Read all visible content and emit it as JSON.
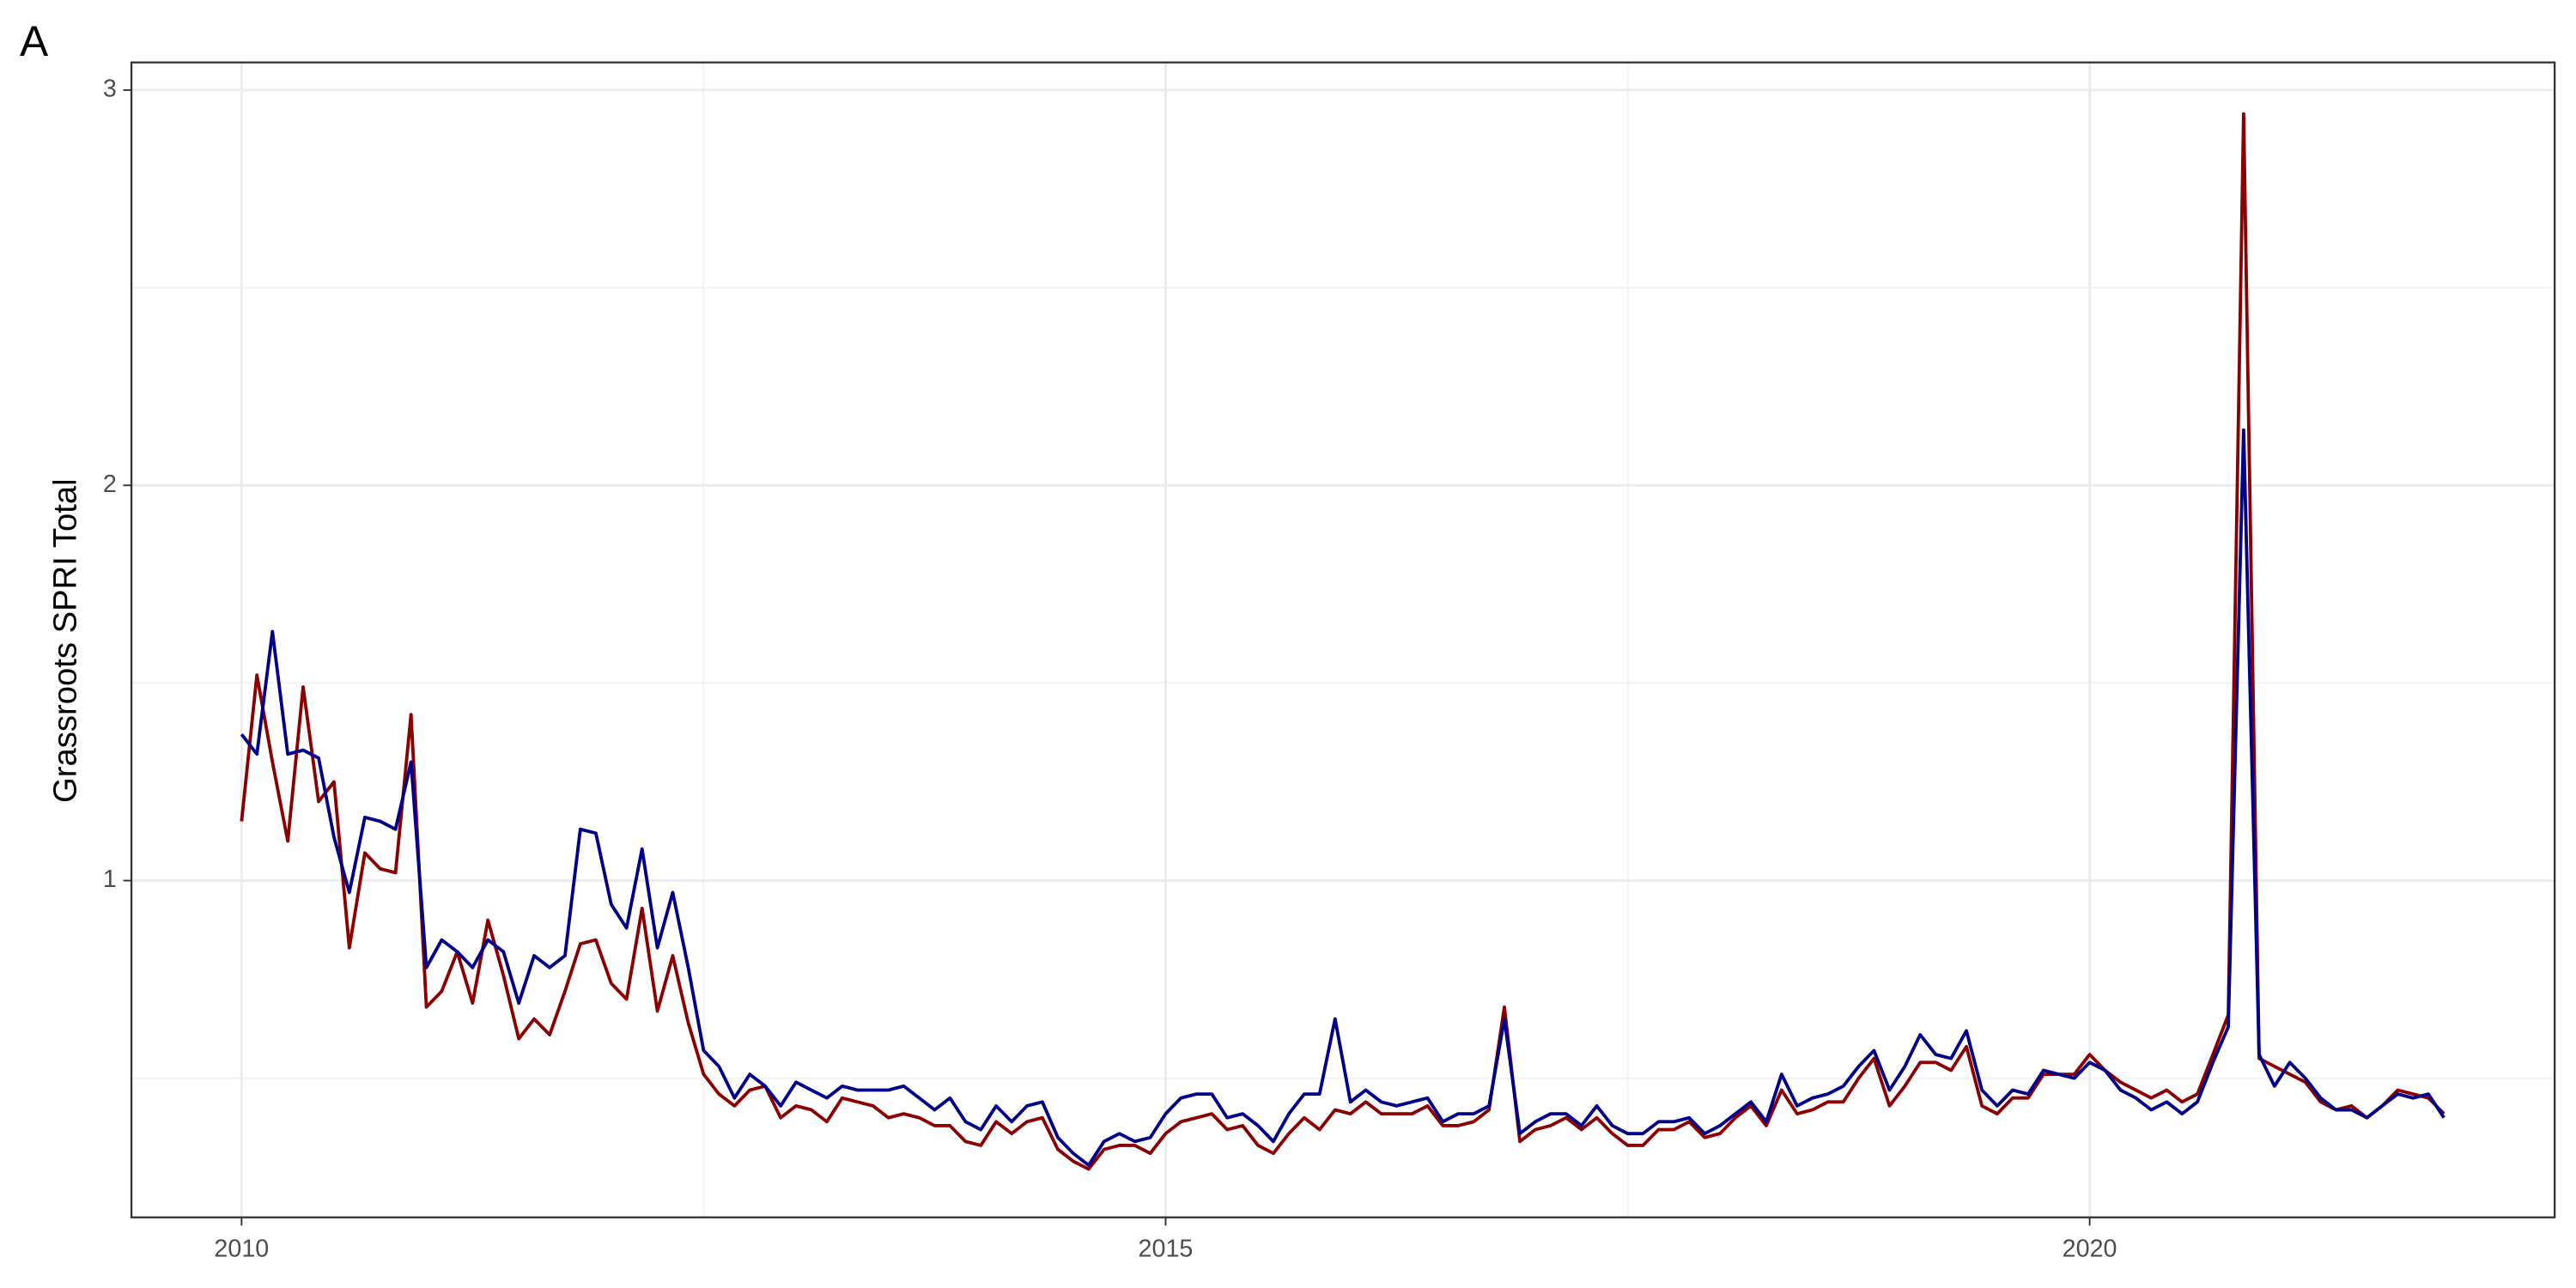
{
  "chart_data": {
    "type": "line",
    "tag": "A",
    "y_label": "Grassroots SPRI Total",
    "xlim": [
      2009.404,
      2022.516
    ],
    "ylim": [
      0.148,
      3.07
    ],
    "xticks": [
      2010,
      2015,
      2020
    ],
    "yticks": [
      1,
      2,
      3
    ],
    "x_minor_ticks": [
      2012.5,
      2017.5
    ],
    "y_minor_ticks": [
      0.5,
      1.5,
      2.5
    ],
    "grid": true,
    "x": [
      2010,
      2010.083,
      2010.167,
      2010.25,
      2010.333,
      2010.417,
      2010.5,
      2010.583,
      2010.667,
      2010.75,
      2010.833,
      2010.917,
      2011,
      2011.083,
      2011.167,
      2011.25,
      2011.333,
      2011.417,
      2011.5,
      2011.583,
      2011.667,
      2011.75,
      2011.833,
      2011.917,
      2012,
      2012.083,
      2012.167,
      2012.25,
      2012.333,
      2012.417,
      2012.5,
      2012.583,
      2012.667,
      2012.75,
      2012.833,
      2012.917,
      2013,
      2013.083,
      2013.167,
      2013.25,
      2013.333,
      2013.417,
      2013.5,
      2013.583,
      2013.667,
      2013.75,
      2013.833,
      2013.917,
      2014,
      2014.083,
      2014.167,
      2014.25,
      2014.333,
      2014.417,
      2014.5,
      2014.583,
      2014.667,
      2014.75,
      2014.833,
      2014.917,
      2015,
      2015.083,
      2015.167,
      2015.25,
      2015.333,
      2015.417,
      2015.5,
      2015.583,
      2015.667,
      2015.75,
      2015.833,
      2015.917,
      2016,
      2016.083,
      2016.167,
      2016.25,
      2016.333,
      2016.417,
      2016.5,
      2016.583,
      2016.667,
      2016.75,
      2016.833,
      2016.917,
      2017,
      2017.083,
      2017.167,
      2017.25,
      2017.333,
      2017.417,
      2017.5,
      2017.583,
      2017.667,
      2017.75,
      2017.833,
      2017.917,
      2018,
      2018.083,
      2018.167,
      2018.25,
      2018.333,
      2018.417,
      2018.5,
      2018.583,
      2018.667,
      2018.75,
      2018.833,
      2018.917,
      2019,
      2019.083,
      2019.167,
      2019.25,
      2019.333,
      2019.417,
      2019.5,
      2019.583,
      2019.667,
      2019.75,
      2019.833,
      2019.917,
      2020,
      2020.083,
      2020.167,
      2020.25,
      2020.333,
      2020.417,
      2020.5,
      2020.583,
      2020.667,
      2020.75,
      2020.833,
      2020.917,
      2021,
      2021.083,
      2021.167,
      2021.25,
      2021.333,
      2021.417,
      2021.5,
      2021.583,
      2021.667,
      2021.75,
      2021.833,
      2021.917
    ],
    "series": [
      {
        "color": "#8b0000",
        "values": [
          1.15,
          1.52,
          1.3,
          1.1,
          1.49,
          1.2,
          1.25,
          0.83,
          1.07,
          1.03,
          1.02,
          1.42,
          0.68,
          0.72,
          0.82,
          0.69,
          0.9,
          0.76,
          0.6,
          0.65,
          0.61,
          0.72,
          0.84,
          0.85,
          0.74,
          0.7,
          0.93,
          0.67,
          0.81,
          0.64,
          0.51,
          0.46,
          0.43,
          0.47,
          0.48,
          0.4,
          0.43,
          0.42,
          0.39,
          0.45,
          0.44,
          0.43,
          0.4,
          0.41,
          0.4,
          0.38,
          0.38,
          0.34,
          0.33,
          0.39,
          0.36,
          0.39,
          0.4,
          0.32,
          0.29,
          0.27,
          0.32,
          0.33,
          0.33,
          0.31,
          0.36,
          0.39,
          0.4,
          0.41,
          0.37,
          0.38,
          0.33,
          0.31,
          0.36,
          0.4,
          0.37,
          0.42,
          0.41,
          0.44,
          0.41,
          0.41,
          0.41,
          0.43,
          0.38,
          0.38,
          0.39,
          0.42,
          0.68,
          0.34,
          0.37,
          0.38,
          0.4,
          0.37,
          0.4,
          0.36,
          0.33,
          0.33,
          0.37,
          0.37,
          0.39,
          0.35,
          0.36,
          0.4,
          0.43,
          0.38,
          0.47,
          0.41,
          0.42,
          0.44,
          0.44,
          0.5,
          0.55,
          0.43,
          0.48,
          0.54,
          0.54,
          0.52,
          0.58,
          0.43,
          0.41,
          0.45,
          0.45,
          0.51,
          0.51,
          0.51,
          0.56,
          0.52,
          0.49,
          0.47,
          0.45,
          0.47,
          0.44,
          0.46,
          0.56,
          0.66,
          2.94,
          0.55,
          0.53,
          0.51,
          0.49,
          0.44,
          0.42,
          0.43,
          0.4,
          0.43,
          0.47,
          0.46,
          0.45,
          0.41
        ]
      },
      {
        "color": "#00008b",
        "values": [
          1.37,
          1.32,
          1.63,
          1.32,
          1.33,
          1.31,
          1.11,
          0.97,
          1.16,
          1.15,
          1.13,
          1.3,
          0.78,
          0.85,
          0.82,
          0.78,
          0.85,
          0.82,
          0.69,
          0.81,
          0.78,
          0.81,
          1.13,
          1.12,
          0.94,
          0.88,
          1.08,
          0.83,
          0.97,
          0.78,
          0.57,
          0.53,
          0.45,
          0.51,
          0.48,
          0.43,
          0.49,
          0.47,
          0.45,
          0.48,
          0.47,
          0.47,
          0.47,
          0.48,
          0.45,
          0.42,
          0.45,
          0.39,
          0.37,
          0.43,
          0.39,
          0.43,
          0.44,
          0.35,
          0.31,
          0.28,
          0.34,
          0.36,
          0.34,
          0.35,
          0.41,
          0.45,
          0.46,
          0.46,
          0.4,
          0.41,
          0.38,
          0.34,
          0.41,
          0.46,
          0.46,
          0.65,
          0.44,
          0.47,
          0.44,
          0.43,
          0.44,
          0.45,
          0.39,
          0.41,
          0.41,
          0.43,
          0.65,
          0.36,
          0.39,
          0.41,
          0.41,
          0.38,
          0.43,
          0.38,
          0.36,
          0.36,
          0.39,
          0.39,
          0.4,
          0.36,
          0.38,
          0.41,
          0.44,
          0.39,
          0.51,
          0.43,
          0.45,
          0.46,
          0.48,
          0.53,
          0.57,
          0.47,
          0.53,
          0.61,
          0.56,
          0.55,
          0.62,
          0.47,
          0.43,
          0.47,
          0.46,
          0.52,
          0.51,
          0.5,
          0.54,
          0.52,
          0.47,
          0.45,
          0.42,
          0.44,
          0.41,
          0.44,
          0.54,
          0.63,
          2.14,
          0.56,
          0.48,
          0.54,
          0.5,
          0.45,
          0.42,
          0.42,
          0.4,
          0.43,
          0.46,
          0.45,
          0.46,
          0.4
        ]
      }
    ]
  }
}
